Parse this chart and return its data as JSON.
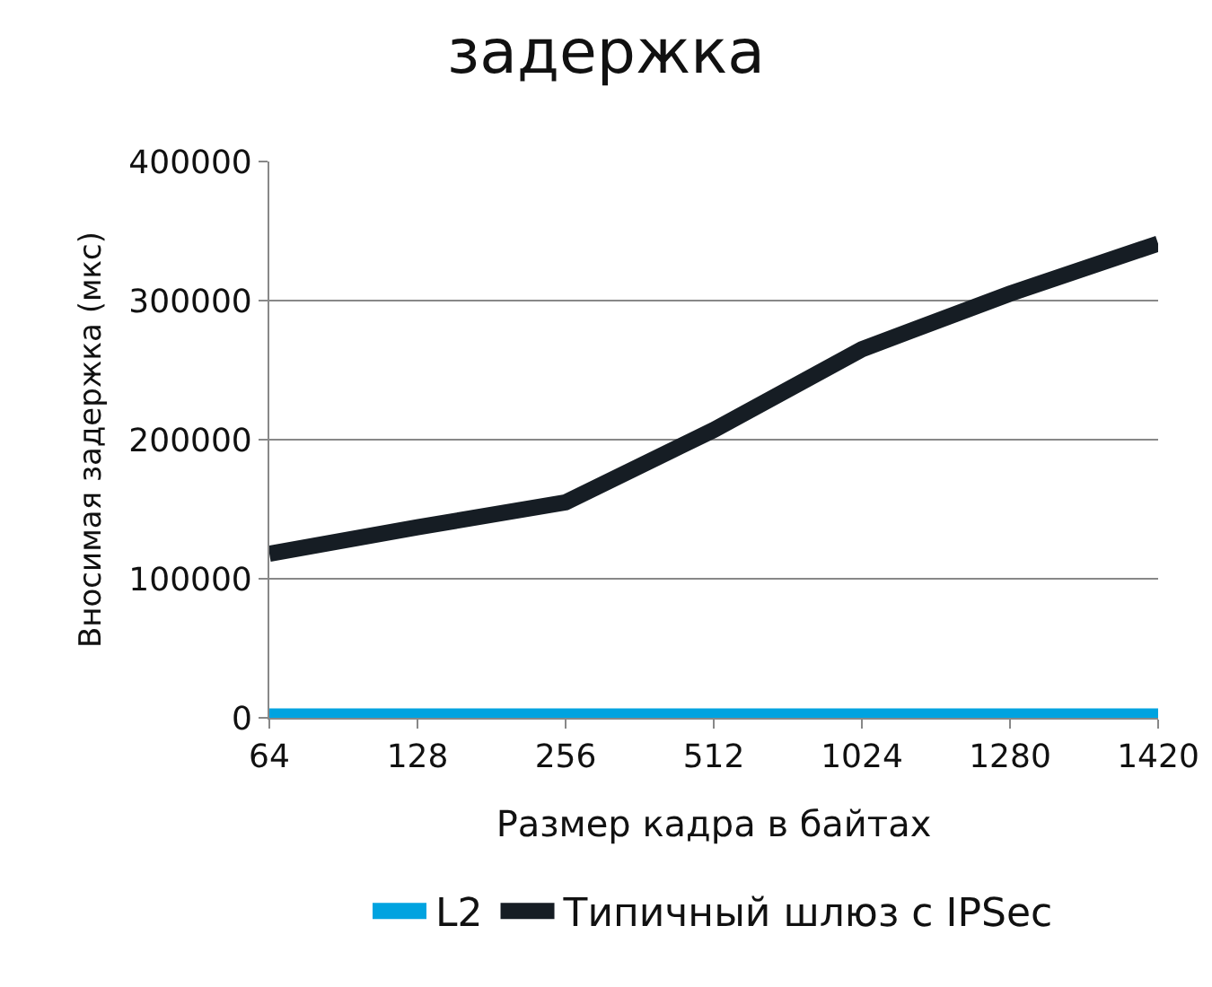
{
  "chart_data": {
    "type": "line",
    "title": "задержка",
    "ylabel": "Вносимая задержка (мкс)",
    "xlabel": "Размер кадра в байтах",
    "categories": [
      "64",
      "128",
      "256",
      "512",
      "1024",
      "1280",
      "1420"
    ],
    "series": [
      {
        "name": "L2",
        "color": "#00a3e0",
        "values": [
          1000,
          1000,
          1000,
          1000,
          1000,
          1000,
          1000
        ]
      },
      {
        "name": "Типичный шлюз с IPSec",
        "color": "#161d24",
        "values": [
          118000,
          137000,
          155000,
          207000,
          265000,
          305000,
          341000
        ]
      }
    ],
    "ylim": [
      0,
      400000
    ],
    "yticks": [
      0,
      100000,
      200000,
      300000,
      400000
    ],
    "grid": "y",
    "legend": "bottom",
    "marker": "none",
    "line_style": "solid"
  }
}
